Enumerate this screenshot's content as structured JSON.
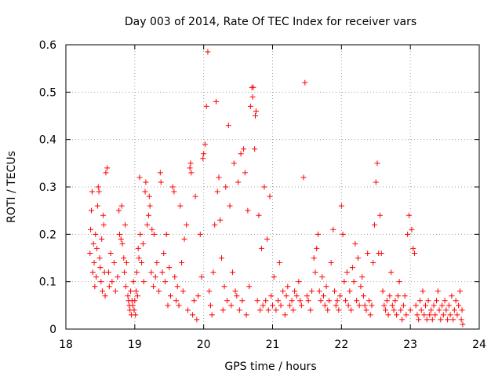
{
  "chart_data": {
    "type": "scatter",
    "title": "Day 003 of 2014, Rate Of TEC Index for receiver vars",
    "xlabel": "GPS time / hours",
    "ylabel": "ROTI / TECUs",
    "xlim": [
      18,
      24
    ],
    "ylim": [
      0,
      0.6
    ],
    "xticks": [
      "18",
      "19",
      "20",
      "21",
      "22",
      "23",
      "24"
    ],
    "yticks": [
      "0",
      "0.1",
      "0.2",
      "0.3",
      "0.4",
      "0.5",
      "0.6"
    ],
    "grid": true,
    "marker": "+",
    "color": "#ff0000",
    "series": [
      {
        "name": "ROTI",
        "points": [
          [
            18.35,
            0.16
          ],
          [
            18.36,
            0.21
          ],
          [
            18.37,
            0.25
          ],
          [
            18.38,
            0.29
          ],
          [
            18.39,
            0.12
          ],
          [
            18.4,
            0.18
          ],
          [
            18.41,
            0.14
          ],
          [
            18.42,
            0.09
          ],
          [
            18.43,
            0.2
          ],
          [
            18.44,
            0.11
          ],
          [
            18.45,
            0.17
          ],
          [
            18.46,
            0.26
          ],
          [
            18.47,
            0.3
          ],
          [
            18.48,
            0.29
          ],
          [
            18.49,
            0.15
          ],
          [
            18.5,
            0.13
          ],
          [
            18.51,
            0.1
          ],
          [
            18.52,
            0.19
          ],
          [
            18.53,
            0.08
          ],
          [
            18.54,
            0.24
          ],
          [
            18.55,
            0.22
          ],
          [
            18.56,
            0.12
          ],
          [
            18.57,
            0.07
          ],
          [
            18.58,
            0.33
          ],
          [
            18.6,
            0.34
          ],
          [
            18.62,
            0.12
          ],
          [
            18.63,
            0.09
          ],
          [
            18.65,
            0.16
          ],
          [
            18.67,
            0.1
          ],
          [
            18.7,
            0.14
          ],
          [
            18.72,
            0.08
          ],
          [
            18.75,
            0.11
          ],
          [
            18.77,
            0.25
          ],
          [
            18.78,
            0.2
          ],
          [
            18.8,
            0.19
          ],
          [
            18.81,
            0.26
          ],
          [
            18.82,
            0.18
          ],
          [
            18.84,
            0.15
          ],
          [
            18.85,
            0.12
          ],
          [
            18.86,
            0.22
          ],
          [
            18.87,
            0.09
          ],
          [
            18.88,
            0.14
          ],
          [
            18.9,
            0.07
          ],
          [
            18.91,
            0.06
          ],
          [
            18.92,
            0.05
          ],
          [
            18.93,
            0.04
          ],
          [
            18.94,
            0.08
          ],
          [
            18.95,
            0.03
          ],
          [
            18.96,
            0.06
          ],
          [
            18.97,
            0.05
          ],
          [
            18.98,
            0.1
          ],
          [
            18.99,
            0.04
          ],
          [
            19.0,
            0.06
          ],
          [
            19.01,
            0.03
          ],
          [
            19.02,
            0.08
          ],
          [
            19.03,
            0.12
          ],
          [
            19.04,
            0.07
          ],
          [
            19.05,
            0.17
          ],
          [
            19.06,
            0.15
          ],
          [
            19.07,
            0.32
          ],
          [
            19.08,
            0.2
          ],
          [
            19.1,
            0.14
          ],
          [
            19.12,
            0.18
          ],
          [
            19.13,
            0.1
          ],
          [
            19.15,
            0.29
          ],
          [
            19.16,
            0.31
          ],
          [
            19.18,
            0.22
          ],
          [
            19.2,
            0.24
          ],
          [
            19.21,
            0.28
          ],
          [
            19.22,
            0.26
          ],
          [
            19.24,
            0.12
          ],
          [
            19.25,
            0.21
          ],
          [
            19.27,
            0.09
          ],
          [
            19.28,
            0.2
          ],
          [
            19.3,
            0.11
          ],
          [
            19.32,
            0.14
          ],
          [
            19.35,
            0.08
          ],
          [
            19.37,
            0.33
          ],
          [
            19.38,
            0.31
          ],
          [
            19.4,
            0.12
          ],
          [
            19.42,
            0.16
          ],
          [
            19.44,
            0.1
          ],
          [
            19.46,
            0.2
          ],
          [
            19.48,
            0.05
          ],
          [
            19.5,
            0.13
          ],
          [
            19.52,
            0.07
          ],
          [
            19.55,
            0.3
          ],
          [
            19.57,
            0.29
          ],
          [
            19.58,
            0.11
          ],
          [
            19.6,
            0.06
          ],
          [
            19.62,
            0.09
          ],
          [
            19.64,
            0.05
          ],
          [
            19.66,
            0.26
          ],
          [
            19.68,
            0.14
          ],
          [
            19.7,
            0.08
          ],
          [
            19.72,
            0.19
          ],
          [
            19.75,
            0.22
          ],
          [
            19.77,
            0.04
          ],
          [
            19.8,
            0.34
          ],
          [
            19.81,
            0.35
          ],
          [
            19.82,
            0.33
          ],
          [
            19.84,
            0.03
          ],
          [
            19.86,
            0.06
          ],
          [
            19.88,
            0.28
          ],
          [
            19.9,
            0.02
          ],
          [
            19.92,
            0.07
          ],
          [
            19.95,
            0.2
          ],
          [
            19.97,
            0.11
          ],
          [
            19.99,
            0.36
          ],
          [
            20.0,
            0.37
          ],
          [
            20.02,
            0.39
          ],
          [
            20.04,
            0.47
          ],
          [
            20.06,
            0.585
          ],
          [
            20.08,
            0.08
          ],
          [
            20.1,
            0.05
          ],
          [
            20.12,
            0.03
          ],
          [
            20.14,
            0.12
          ],
          [
            20.16,
            0.22
          ],
          [
            20.18,
            0.48
          ],
          [
            20.2,
            0.29
          ],
          [
            20.22,
            0.32
          ],
          [
            20.24,
            0.23
          ],
          [
            20.26,
            0.15
          ],
          [
            20.28,
            0.04
          ],
          [
            20.3,
            0.09
          ],
          [
            20.32,
            0.3
          ],
          [
            20.34,
            0.06
          ],
          [
            20.36,
            0.43
          ],
          [
            20.38,
            0.26
          ],
          [
            20.4,
            0.05
          ],
          [
            20.42,
            0.12
          ],
          [
            20.44,
            0.35
          ],
          [
            20.46,
            0.08
          ],
          [
            20.48,
            0.07
          ],
          [
            20.5,
            0.31
          ],
          [
            20.52,
            0.04
          ],
          [
            20.54,
            0.37
          ],
          [
            20.56,
            0.06
          ],
          [
            20.58,
            0.38
          ],
          [
            20.6,
            0.33
          ],
          [
            20.62,
            0.03
          ],
          [
            20.64,
            0.25
          ],
          [
            20.66,
            0.09
          ],
          [
            20.68,
            0.47
          ],
          [
            20.7,
            0.51
          ],
          [
            20.71,
            0.49
          ],
          [
            20.72,
            0.51
          ],
          [
            20.74,
            0.38
          ],
          [
            20.75,
            0.45
          ],
          [
            20.76,
            0.46
          ],
          [
            20.78,
            0.06
          ],
          [
            20.8,
            0.24
          ],
          [
            20.82,
            0.04
          ],
          [
            20.84,
            0.17
          ],
          [
            20.86,
            0.05
          ],
          [
            20.88,
            0.3
          ],
          [
            20.9,
            0.06
          ],
          [
            20.92,
            0.19
          ],
          [
            20.94,
            0.04
          ],
          [
            20.96,
            0.28
          ],
          [
            20.98,
            0.07
          ],
          [
            21.0,
            0.05
          ],
          [
            21.02,
            0.11
          ],
          [
            21.05,
            0.04
          ],
          [
            21.08,
            0.06
          ],
          [
            21.1,
            0.14
          ],
          [
            21.12,
            0.05
          ],
          [
            21.15,
            0.08
          ],
          [
            21.18,
            0.03
          ],
          [
            21.2,
            0.07
          ],
          [
            21.22,
            0.09
          ],
          [
            21.25,
            0.05
          ],
          [
            21.28,
            0.06
          ],
          [
            21.3,
            0.04
          ],
          [
            21.32,
            0.08
          ],
          [
            21.35,
            0.07
          ],
          [
            21.38,
            0.1
          ],
          [
            21.4,
            0.06
          ],
          [
            21.42,
            0.05
          ],
          [
            21.45,
            0.32
          ],
          [
            21.47,
            0.52
          ],
          [
            21.5,
            0.07
          ],
          [
            21.52,
            0.06
          ],
          [
            21.55,
            0.04
          ],
          [
            21.57,
            0.08
          ],
          [
            21.6,
            0.15
          ],
          [
            21.62,
            0.12
          ],
          [
            21.64,
            0.17
          ],
          [
            21.66,
            0.2
          ],
          [
            21.68,
            0.08
          ],
          [
            21.7,
            0.06
          ],
          [
            21.72,
            0.11
          ],
          [
            21.74,
            0.07
          ],
          [
            21.76,
            0.05
          ],
          [
            21.78,
            0.09
          ],
          [
            21.8,
            0.04
          ],
          [
            21.82,
            0.06
          ],
          [
            21.85,
            0.14
          ],
          [
            21.88,
            0.21
          ],
          [
            21.9,
            0.08
          ],
          [
            21.92,
            0.05
          ],
          [
            21.94,
            0.06
          ],
          [
            21.96,
            0.04
          ],
          [
            21.98,
            0.07
          ],
          [
            22.0,
            0.26
          ],
          [
            22.02,
            0.2
          ],
          [
            22.04,
            0.1
          ],
          [
            22.06,
            0.06
          ],
          [
            22.08,
            0.12
          ],
          [
            22.1,
            0.05
          ],
          [
            22.12,
            0.08
          ],
          [
            22.14,
            0.04
          ],
          [
            22.16,
            0.13
          ],
          [
            22.18,
            0.1
          ],
          [
            22.2,
            0.18
          ],
          [
            22.22,
            0.06
          ],
          [
            22.24,
            0.15
          ],
          [
            22.26,
            0.05
          ],
          [
            22.28,
            0.09
          ],
          [
            22.3,
            0.11
          ],
          [
            22.32,
            0.07
          ],
          [
            22.34,
            0.05
          ],
          [
            22.36,
            0.04
          ],
          [
            22.38,
            0.16
          ],
          [
            22.4,
            0.06
          ],
          [
            22.42,
            0.03
          ],
          [
            22.44,
            0.05
          ],
          [
            22.46,
            0.14
          ],
          [
            22.48,
            0.22
          ],
          [
            22.5,
            0.31
          ],
          [
            22.52,
            0.35
          ],
          [
            22.54,
            0.16
          ],
          [
            22.56,
            0.24
          ],
          [
            22.58,
            0.16
          ],
          [
            22.6,
            0.08
          ],
          [
            22.62,
            0.05
          ],
          [
            22.64,
            0.04
          ],
          [
            22.66,
            0.06
          ],
          [
            22.68,
            0.03
          ],
          [
            22.7,
            0.07
          ],
          [
            22.72,
            0.12
          ],
          [
            22.74,
            0.05
          ],
          [
            22.76,
            0.04
          ],
          [
            22.78,
            0.06
          ],
          [
            22.8,
            0.03
          ],
          [
            22.82,
            0.07
          ],
          [
            22.84,
            0.1
          ],
          [
            22.86,
            0.04
          ],
          [
            22.88,
            0.02
          ],
          [
            22.9,
            0.05
          ],
          [
            22.92,
            0.07
          ],
          [
            22.94,
            0.03
          ],
          [
            22.96,
            0.2
          ],
          [
            22.98,
            0.24
          ],
          [
            23.0,
            0.04
          ],
          [
            23.02,
            0.21
          ],
          [
            23.04,
            0.17
          ],
          [
            23.06,
            0.16
          ],
          [
            23.08,
            0.05
          ],
          [
            23.1,
            0.03
          ],
          [
            23.12,
            0.02
          ],
          [
            23.14,
            0.06
          ],
          [
            23.16,
            0.04
          ],
          [
            23.18,
            0.08
          ],
          [
            23.2,
            0.03
          ],
          [
            23.22,
            0.05
          ],
          [
            23.24,
            0.02
          ],
          [
            23.26,
            0.06
          ],
          [
            23.28,
            0.03
          ],
          [
            23.3,
            0.04
          ],
          [
            23.32,
            0.02
          ],
          [
            23.34,
            0.05
          ],
          [
            23.36,
            0.03
          ],
          [
            23.38,
            0.06
          ],
          [
            23.4,
            0.08
          ],
          [
            23.42,
            0.04
          ],
          [
            23.44,
            0.02
          ],
          [
            23.46,
            0.05
          ],
          [
            23.48,
            0.03
          ],
          [
            23.5,
            0.06
          ],
          [
            23.52,
            0.04
          ],
          [
            23.54,
            0.02
          ],
          [
            23.56,
            0.05
          ],
          [
            23.58,
            0.03
          ],
          [
            23.6,
            0.07
          ],
          [
            23.62,
            0.02
          ],
          [
            23.64,
            0.04
          ],
          [
            23.66,
            0.06
          ],
          [
            23.68,
            0.03
          ],
          [
            23.7,
            0.05
          ],
          [
            23.72,
            0.08
          ],
          [
            23.74,
            0.02
          ],
          [
            23.75,
            0.04
          ],
          [
            23.76,
            0.01
          ]
        ]
      }
    ]
  }
}
